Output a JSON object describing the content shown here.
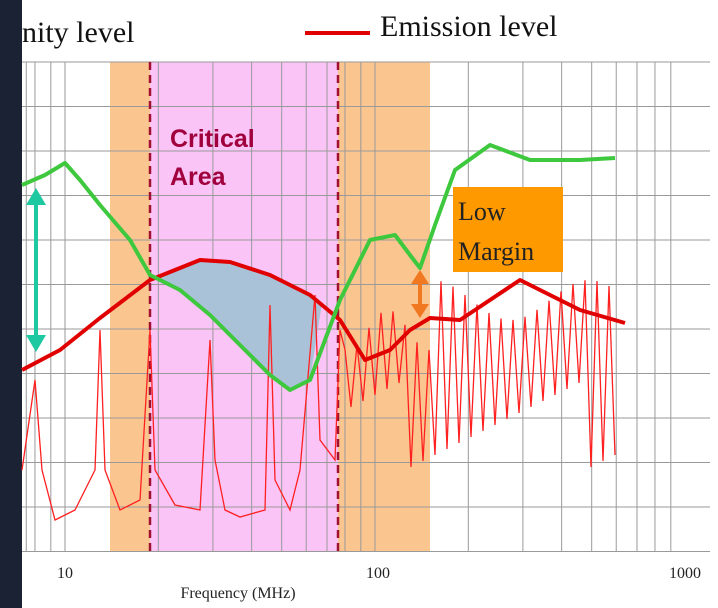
{
  "legend": {
    "immunity": "nity level",
    "emission": "Emission level"
  },
  "annotations": {
    "critical": [
      "Critical",
      "Area"
    ],
    "low_margin": [
      "Low",
      "Margin"
    ]
  },
  "x_axis": {
    "ticks": [
      "10",
      "100",
      "1000"
    ],
    "label": "Frequency (MHz)"
  }
}
